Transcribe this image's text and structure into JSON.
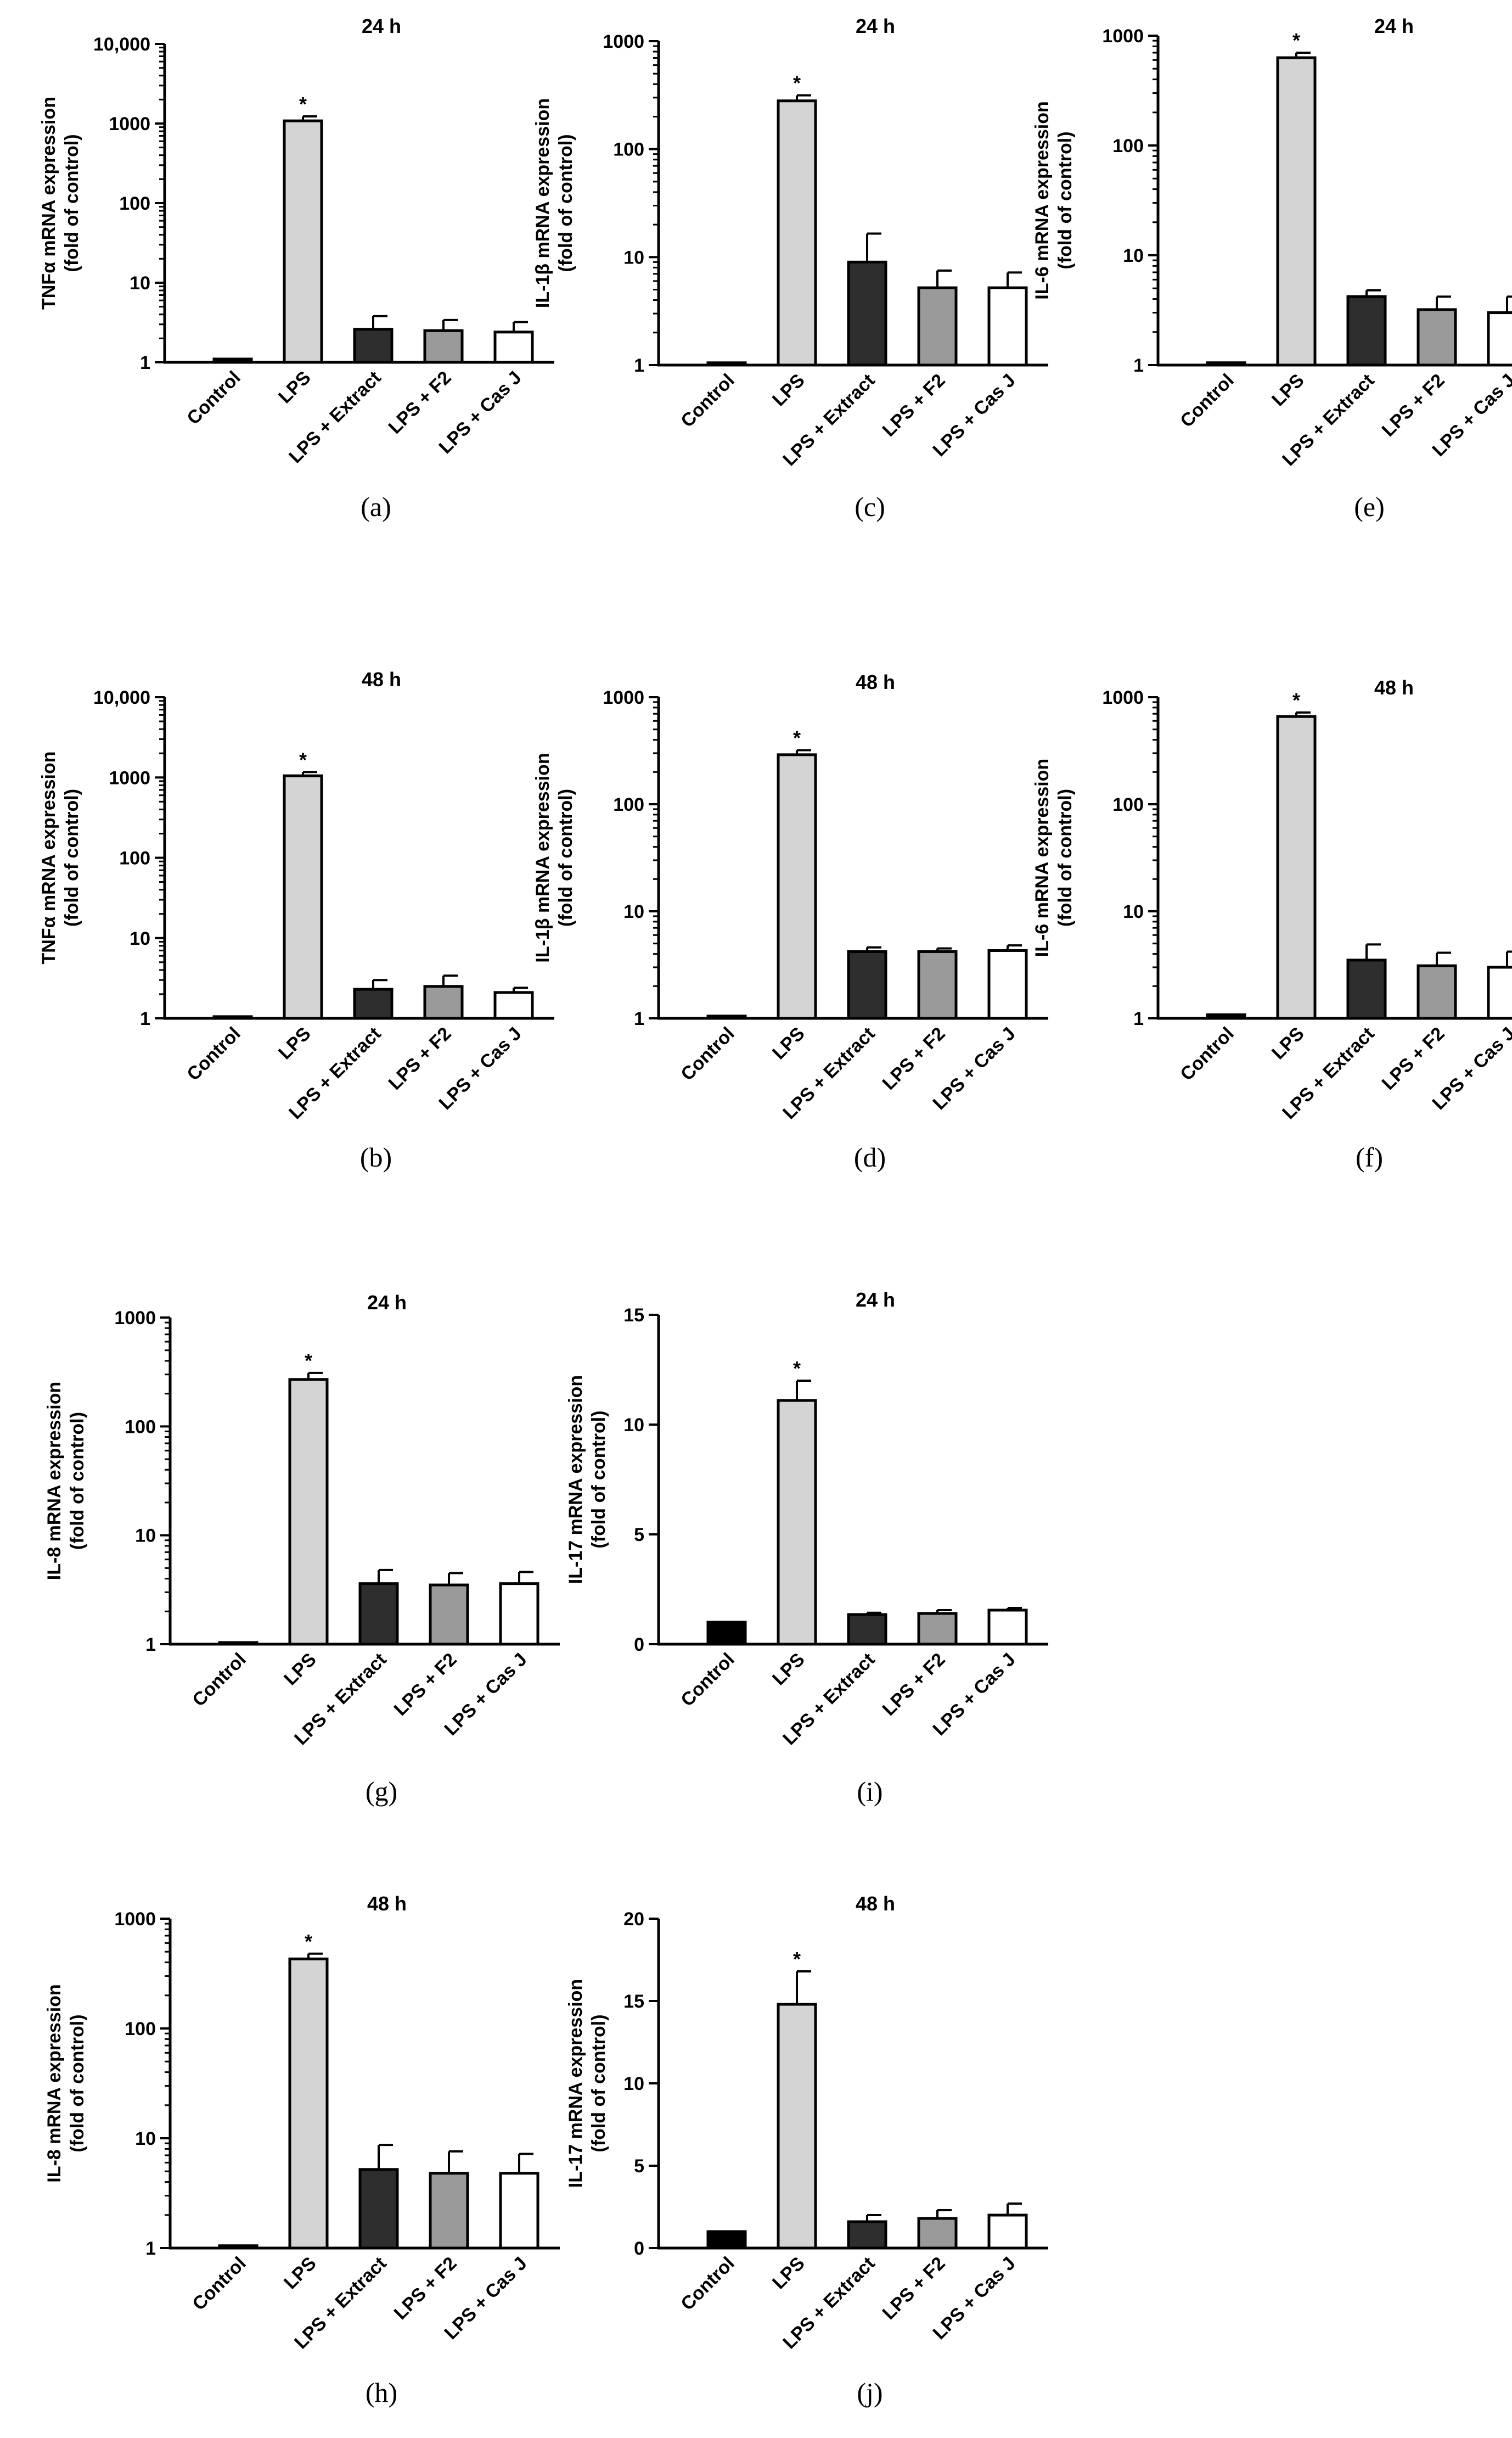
{
  "chart_data": [
    {
      "id": "a",
      "panel_label": "(a)",
      "type": "bar",
      "scale": "log",
      "ylim": [
        1,
        10000
      ],
      "yticks": [
        1,
        10,
        100,
        1000,
        10000
      ],
      "ytick_labels": [
        "1",
        "10",
        "100",
        "1000",
        "10,000"
      ],
      "title": "24 h",
      "ylabel": [
        "TNFα mRNA expression",
        "(fold of control)"
      ],
      "categories": [
        "Control",
        "LPS",
        "LPS + Extract",
        "LPS + F2",
        "LPS + Cas J"
      ],
      "values": [
        1.1,
        1080,
        2.6,
        2.5,
        2.4
      ],
      "errors": [
        0,
        150,
        1.2,
        0.9,
        0.8
      ],
      "annotations": [
        "",
        "*",
        "",
        "",
        ""
      ],
      "colors": [
        "#000000",
        "#d4d4d4",
        "#2e2e2e",
        "#9a9a9a",
        "#ffffff"
      ]
    },
    {
      "id": "b",
      "panel_label": "(b)",
      "type": "bar",
      "scale": "log",
      "ylim": [
        1,
        10000
      ],
      "yticks": [
        1,
        10,
        100,
        1000,
        10000
      ],
      "ytick_labels": [
        "1",
        "10",
        "100",
        "1000",
        "10,000"
      ],
      "title": "48 h",
      "ylabel": [
        "TNFα mRNA expression",
        "(fold of control)"
      ],
      "categories": [
        "Control",
        "LPS",
        "LPS + Extract",
        "LPS + F2",
        "LPS + Cas J"
      ],
      "values": [
        1.05,
        1050,
        2.3,
        2.5,
        2.1
      ],
      "errors": [
        0,
        120,
        0.7,
        0.9,
        0.3
      ],
      "annotations": [
        "",
        "*",
        "",
        "",
        ""
      ],
      "colors": [
        "#000000",
        "#d4d4d4",
        "#2e2e2e",
        "#9a9a9a",
        "#ffffff"
      ]
    },
    {
      "id": "c",
      "panel_label": "(c)",
      "type": "bar",
      "scale": "log",
      "ylim": [
        1,
        1000
      ],
      "yticks": [
        1,
        10,
        100,
        1000
      ],
      "ytick_labels": [
        "1",
        "10",
        "100",
        "1000"
      ],
      "title": "24 h",
      "ylabel": [
        "IL-1β mRNA expression",
        "(fold of control)"
      ],
      "categories": [
        "Control",
        "LPS",
        "LPS + Extract",
        "LPS + F2",
        "LPS + Cas J"
      ],
      "values": [
        1.05,
        280,
        9.0,
        5.2,
        5.2
      ],
      "errors": [
        0,
        35,
        7.5,
        2.3,
        2.0
      ],
      "annotations": [
        "",
        "*",
        "",
        "",
        ""
      ],
      "colors": [
        "#000000",
        "#d4d4d4",
        "#2e2e2e",
        "#9a9a9a",
        "#ffffff"
      ]
    },
    {
      "id": "d",
      "panel_label": "(d)",
      "type": "bar",
      "scale": "log",
      "ylim": [
        1,
        1000
      ],
      "yticks": [
        1,
        10,
        100,
        1000
      ],
      "ytick_labels": [
        "1",
        "10",
        "100",
        "1000"
      ],
      "title": "48 h",
      "ylabel": [
        "IL-1β mRNA expression",
        "(fold of control)"
      ],
      "categories": [
        "Control",
        "LPS",
        "LPS + Extract",
        "LPS + F2",
        "LPS + Cas J"
      ],
      "values": [
        1.05,
        290,
        4.2,
        4.2,
        4.3
      ],
      "errors": [
        0,
        30,
        0.4,
        0.3,
        0.5
      ],
      "annotations": [
        "",
        "*",
        "",
        "",
        ""
      ],
      "colors": [
        "#000000",
        "#d4d4d4",
        "#2e2e2e",
        "#9a9a9a",
        "#ffffff"
      ]
    },
    {
      "id": "e",
      "panel_label": "(e)",
      "type": "bar",
      "scale": "log",
      "ylim": [
        1,
        1000
      ],
      "yticks": [
        1,
        10,
        100,
        1000
      ],
      "ytick_labels": [
        "1",
        "10",
        "100",
        "1000"
      ],
      "title": "24 h",
      "ylabel": [
        "IL-6 mRNA expression",
        "(fold of control)"
      ],
      "categories": [
        "Control",
        "LPS",
        "LPS + Extract",
        "LPS + F2",
        "LPS + Cas J"
      ],
      "values": [
        1.05,
        630,
        4.2,
        3.2,
        3.0
      ],
      "errors": [
        0,
        70,
        0.6,
        1.0,
        1.2
      ],
      "annotations": [
        "",
        "*",
        "",
        "",
        ""
      ],
      "colors": [
        "#000000",
        "#d4d4d4",
        "#2e2e2e",
        "#9a9a9a",
        "#ffffff"
      ]
    },
    {
      "id": "f",
      "panel_label": "(f)",
      "type": "bar",
      "scale": "log",
      "ylim": [
        1,
        1000
      ],
      "yticks": [
        1,
        10,
        100,
        1000
      ],
      "ytick_labels": [
        "1",
        "10",
        "100",
        "1000"
      ],
      "title": "48 h",
      "ylabel": [
        "IL-6 mRNA expression",
        "(fold of control)"
      ],
      "categories": [
        "Control",
        "LPS",
        "LPS + Extract",
        "LPS + F2",
        "LPS + Cas J"
      ],
      "values": [
        1.08,
        660,
        3.5,
        3.1,
        3.0
      ],
      "errors": [
        0,
        60,
        1.4,
        1.0,
        1.2
      ],
      "annotations": [
        "",
        "*",
        "",
        "",
        ""
      ],
      "colors": [
        "#000000",
        "#d4d4d4",
        "#2e2e2e",
        "#9a9a9a",
        "#ffffff"
      ]
    },
    {
      "id": "g",
      "panel_label": "(g)",
      "type": "bar",
      "scale": "log",
      "ylim": [
        1,
        1000
      ],
      "yticks": [
        1,
        10,
        100,
        1000
      ],
      "ytick_labels": [
        "1",
        "10",
        "100",
        "1000"
      ],
      "title": "24 h",
      "ylabel": [
        "IL-8 mRNA expression",
        "(fold of control)"
      ],
      "categories": [
        "Control",
        "LPS",
        "LPS + Extract",
        "LPS + F2",
        "LPS + Cas J"
      ],
      "values": [
        1.03,
        270,
        3.6,
        3.5,
        3.6
      ],
      "errors": [
        0,
        40,
        1.2,
        1.0,
        1.0
      ],
      "annotations": [
        "",
        "*",
        "",
        "",
        ""
      ],
      "colors": [
        "#000000",
        "#d4d4d4",
        "#2e2e2e",
        "#9a9a9a",
        "#ffffff"
      ]
    },
    {
      "id": "h",
      "panel_label": "(h)",
      "type": "bar",
      "scale": "log",
      "ylim": [
        1,
        1000
      ],
      "yticks": [
        1,
        10,
        100,
        1000
      ],
      "ytick_labels": [
        "1",
        "10",
        "100",
        "1000"
      ],
      "title": "48 h",
      "ylabel": [
        "IL-8 mRNA expression",
        "(fold of control)"
      ],
      "categories": [
        "Control",
        "LPS",
        "LPS + Extract",
        "LPS + F2",
        "LPS + Cas J"
      ],
      "values": [
        1.05,
        430,
        5.2,
        4.8,
        4.8
      ],
      "errors": [
        0,
        50,
        3.5,
        2.8,
        2.4
      ],
      "annotations": [
        "",
        "*",
        "",
        "",
        ""
      ],
      "colors": [
        "#000000",
        "#d4d4d4",
        "#2e2e2e",
        "#9a9a9a",
        "#ffffff"
      ]
    },
    {
      "id": "i",
      "panel_label": "(i)",
      "type": "bar",
      "scale": "linear",
      "ylim": [
        0,
        15
      ],
      "yticks": [
        0,
        5,
        10,
        15
      ],
      "ytick_labels": [
        "0",
        "5",
        "10",
        "15"
      ],
      "title": "24 h",
      "ylabel": [
        "IL-17 mRNA expression",
        "(fold of control)"
      ],
      "categories": [
        "Control",
        "LPS",
        "LPS + Extract",
        "LPS + F2",
        "LPS + Cas J"
      ],
      "values": [
        1.0,
        11.1,
        1.35,
        1.4,
        1.55
      ],
      "errors": [
        0,
        0.9,
        0.08,
        0.15,
        0.1
      ],
      "annotations": [
        "",
        "*",
        "",
        "",
        ""
      ],
      "colors": [
        "#000000",
        "#d4d4d4",
        "#2e2e2e",
        "#9a9a9a",
        "#ffffff"
      ]
    },
    {
      "id": "j",
      "panel_label": "(j)",
      "type": "bar",
      "scale": "linear",
      "ylim": [
        0,
        20
      ],
      "yticks": [
        0,
        5,
        10,
        15,
        20
      ],
      "ytick_labels": [
        "0",
        "5",
        "10",
        "15",
        "20"
      ],
      "title": "48 h",
      "ylabel": [
        "IL-17 mRNA expression",
        "(fold of control)"
      ],
      "categories": [
        "Control",
        "LPS",
        "LPS + Extract",
        "LPS + F2",
        "LPS + Cas J"
      ],
      "values": [
        1.0,
        14.8,
        1.6,
        1.8,
        2.0
      ],
      "errors": [
        0,
        2.0,
        0.4,
        0.5,
        0.7
      ],
      "annotations": [
        "",
        "*",
        "",
        "",
        ""
      ],
      "colors": [
        "#000000",
        "#d4d4d4",
        "#2e2e2e",
        "#9a9a9a",
        "#ffffff"
      ]
    }
  ]
}
